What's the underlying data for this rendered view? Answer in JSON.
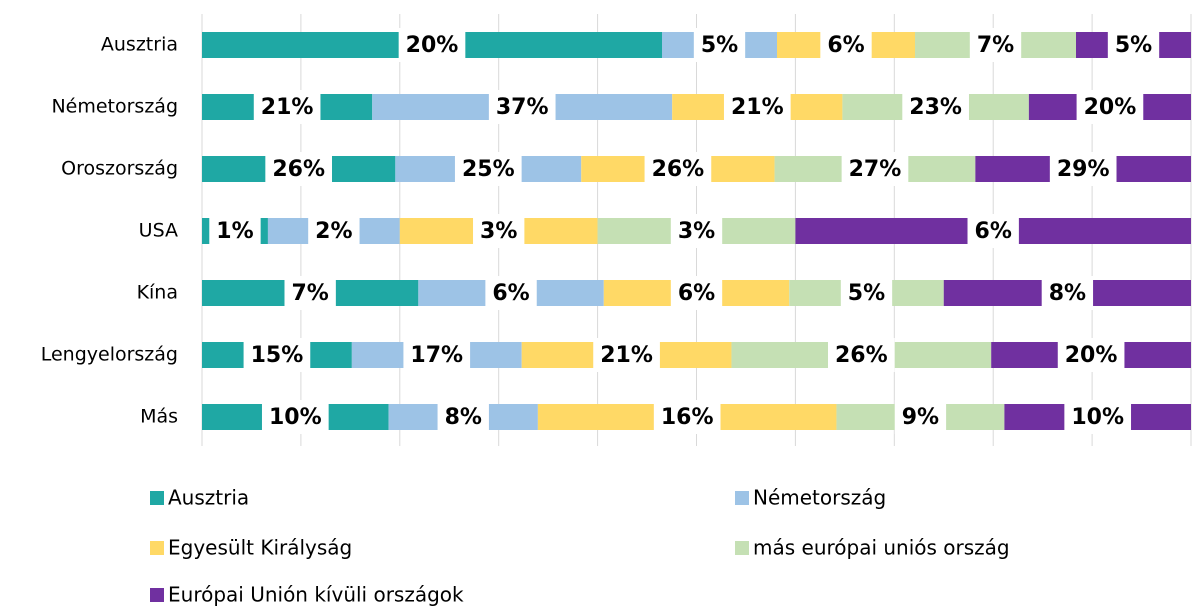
{
  "chart_data": {
    "type": "stacked-bar-100",
    "categories": [
      "Ausztria",
      "Németország",
      "Oroszország",
      "USA",
      "Kína",
      "Lengyelország",
      "Más"
    ],
    "series": [
      {
        "name": "Ausztria",
        "color": "#1fa8a4",
        "values": [
          20,
          21,
          26,
          1,
          7,
          15,
          10
        ],
        "value_labels": [
          "20%",
          "21%",
          "26%",
          "1%",
          "7%",
          "15%",
          "10%"
        ]
      },
      {
        "name": "Németország",
        "color": "#9dc3e6",
        "values": [
          5,
          37,
          25,
          2,
          6,
          17,
          8
        ],
        "value_labels": [
          "5%",
          "37%",
          "25%",
          "2%",
          "6%",
          "17%",
          "8%"
        ]
      },
      {
        "name": "Egyesült Királyság",
        "color": "#ffd966",
        "values": [
          6,
          21,
          26,
          3,
          6,
          21,
          16
        ],
        "value_labels": [
          "6%",
          "21%",
          "26%",
          "3%",
          "6%",
          "21%",
          "16%"
        ]
      },
      {
        "name": "más európai uniós ország",
        "color": "#c5e0b4",
        "values": [
          7,
          23,
          27,
          3,
          5,
          26,
          9
        ],
        "value_labels": [
          "7%",
          "23%",
          "27%",
          "3%",
          "5%",
          "26%",
          "9%"
        ]
      },
      {
        "name": "Európai Unión kívüli országok",
        "color": "#7030a0",
        "values": [
          5,
          20,
          29,
          6,
          8,
          20,
          10
        ],
        "value_labels": [
          "5%",
          "20%",
          "29%",
          "6%",
          "8%",
          "20%",
          "10%"
        ]
      }
    ],
    "xlim": [
      0,
      100
    ],
    "xticks": [
      0,
      10,
      20,
      30,
      40,
      50,
      60,
      70,
      80,
      90,
      100
    ],
    "grid": true
  }
}
